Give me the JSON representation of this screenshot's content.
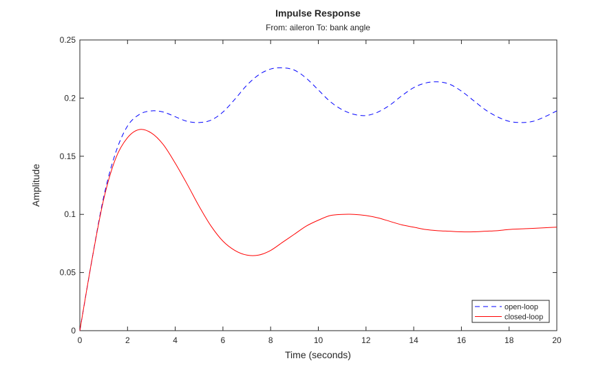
{
  "chart_data": {
    "type": "line",
    "title": "Impulse Response",
    "subtitle": "From: aileron  To: bank angle",
    "xlabel": "Time (seconds)",
    "ylabel": "Amplitude",
    "xlim": [
      0,
      20
    ],
    "ylim": [
      0,
      0.25
    ],
    "xticks": [
      0,
      2,
      4,
      6,
      8,
      10,
      12,
      14,
      16,
      18,
      20
    ],
    "xtick_labels": [
      "0",
      "2",
      "4",
      "6",
      "8",
      "10",
      "12",
      "14",
      "16",
      "18",
      "20"
    ],
    "yticks": [
      0,
      0.05,
      0.1,
      0.15,
      0.2,
      0.25
    ],
    "ytick_labels": [
      "0",
      "0.05",
      "0.1",
      "0.15",
      "0.2",
      "0.25"
    ],
    "grid": false,
    "legend_position": "bottom-right",
    "x": [
      0,
      0.5,
      1,
      1.5,
      2,
      2.5,
      3,
      3.5,
      4,
      4.5,
      5,
      5.5,
      6,
      6.5,
      7,
      7.5,
      8,
      8.5,
      9,
      9.5,
      10,
      10.5,
      11,
      11.5,
      12,
      12.5,
      13,
      13.5,
      14,
      14.5,
      15,
      15.5,
      16,
      16.5,
      17,
      17.5,
      18,
      18.5,
      19,
      19.5,
      20
    ],
    "series": [
      {
        "name": "open-loop",
        "color": "#0000ff",
        "style": "dashed",
        "values": [
          0,
          0.06,
          0.115,
          0.153,
          0.176,
          0.186,
          0.189,
          0.188,
          0.184,
          0.18,
          0.179,
          0.181,
          0.188,
          0.199,
          0.211,
          0.22,
          0.225,
          0.226,
          0.224,
          0.217,
          0.207,
          0.197,
          0.19,
          0.186,
          0.185,
          0.188,
          0.194,
          0.202,
          0.209,
          0.213,
          0.214,
          0.212,
          0.206,
          0.198,
          0.19,
          0.184,
          0.18,
          0.179,
          0.18,
          0.184,
          0.189
        ]
      },
      {
        "name": "closed-loop",
        "color": "#ff0000",
        "style": "solid",
        "values": [
          0,
          0.06,
          0.113,
          0.148,
          0.166,
          0.173,
          0.17,
          0.16,
          0.144,
          0.126,
          0.107,
          0.09,
          0.077,
          0.069,
          0.065,
          0.065,
          0.069,
          0.076,
          0.083,
          0.09,
          0.095,
          0.099,
          0.1,
          0.1,
          0.099,
          0.097,
          0.094,
          0.091,
          0.089,
          0.087,
          0.086,
          0.0855,
          0.085,
          0.085,
          0.0855,
          0.086,
          0.087,
          0.0875,
          0.088,
          0.0885,
          0.089
        ]
      }
    ]
  }
}
